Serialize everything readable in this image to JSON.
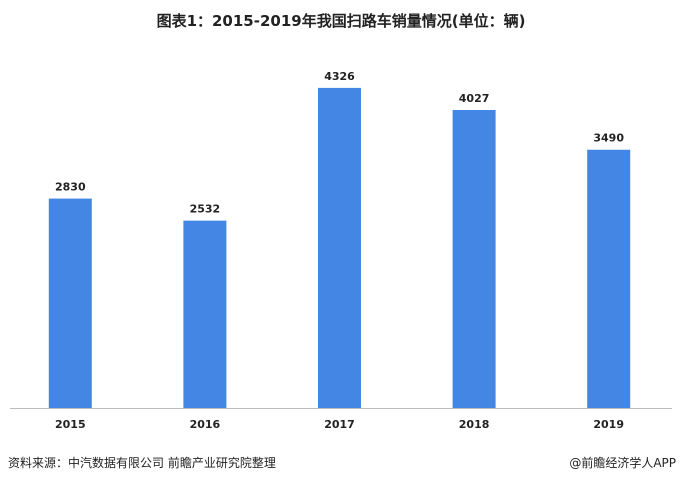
{
  "chart_data": {
    "type": "bar",
    "title": "图表1：2015-2019年我国扫路车销量情况(单位：辆)",
    "categories": [
      "2015",
      "2016",
      "2017",
      "2018",
      "2019"
    ],
    "values": [
      2830,
      2532,
      4326,
      4027,
      3490
    ],
    "xlabel": "",
    "ylabel": "",
    "ylim": [
      0,
      5000
    ],
    "grid": false,
    "legend": "none",
    "bar_color": "#4486E3",
    "data_labels": true
  },
  "footer": {
    "source": "资料来源：中汽数据有限公司 前瞻产业研究院整理",
    "credit": "@前瞻经济学人APP"
  }
}
